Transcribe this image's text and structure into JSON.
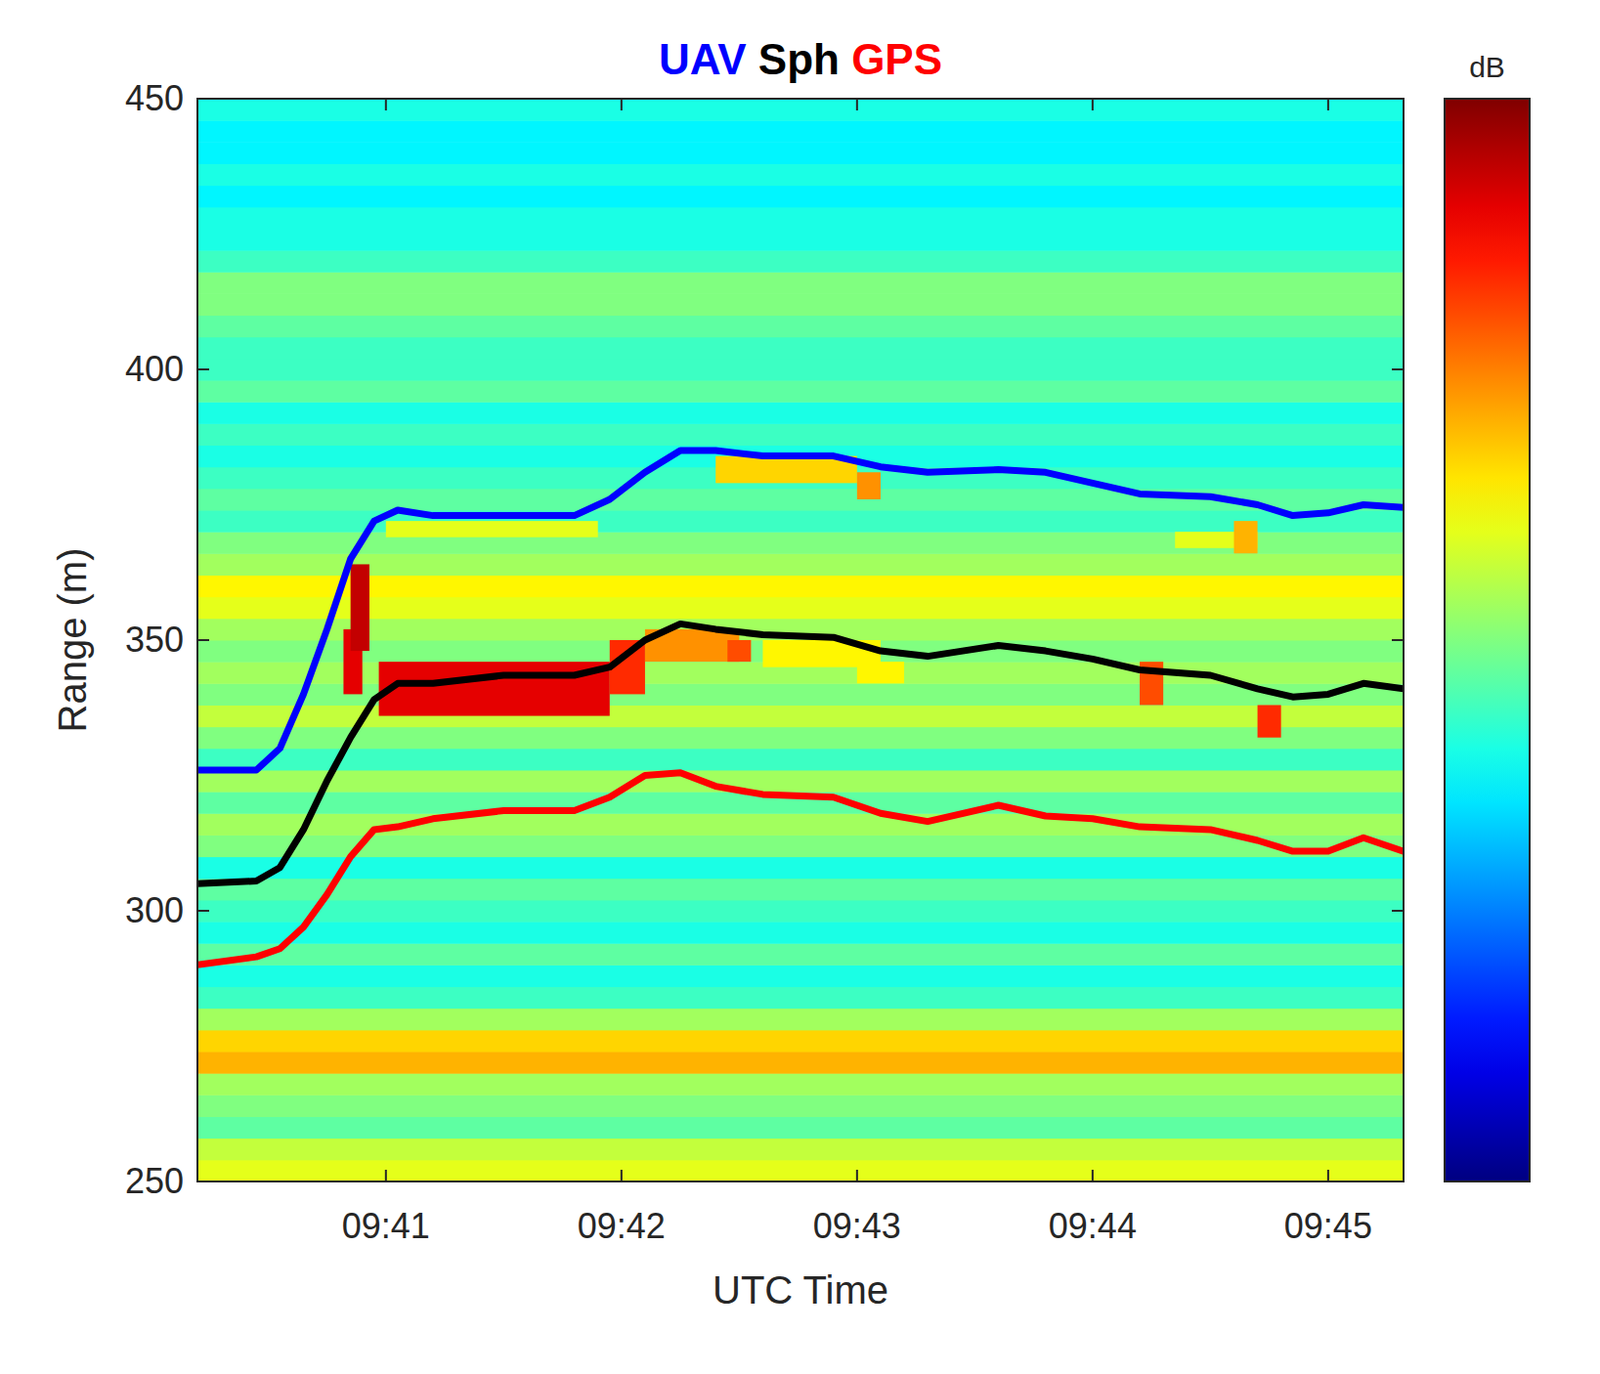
{
  "chart_data": {
    "type": "heatmap_line",
    "xlabel": "UTC Time",
    "ylabel": "Range (m)",
    "legend": "top",
    "grid": false,
    "xlim": [
      40.2,
      45.32
    ],
    "xticks": [
      {
        "value": 41,
        "label": "09:41"
      },
      {
        "value": 42,
        "label": "09:42"
      },
      {
        "value": 43,
        "label": "09:43"
      },
      {
        "value": 44,
        "label": "09:44"
      },
      {
        "value": 45,
        "label": "09:45"
      }
    ],
    "ylim": [
      250,
      450
    ],
    "yticks": [
      250,
      300,
      350,
      400,
      450
    ],
    "x": [
      40.2,
      40.45,
      40.55,
      40.65,
      40.75,
      40.85,
      40.95,
      41.05,
      41.2,
      41.5,
      41.8,
      41.95,
      42.1,
      42.25,
      42.4,
      42.6,
      42.9,
      43.1,
      43.3,
      43.6,
      43.8,
      44.0,
      44.2,
      44.5,
      44.7,
      44.85,
      45.0,
      45.15,
      45.32
    ],
    "series": [
      {
        "name": "UAV",
        "color": "#0000ff",
        "values": [
          326,
          326,
          330,
          340,
          352,
          365,
          372,
          374,
          373,
          373,
          373,
          376,
          381,
          385,
          385,
          384,
          384,
          382,
          381,
          381.5,
          381,
          379,
          377,
          376.5,
          375,
          373,
          373.5,
          375,
          374.5
        ]
      },
      {
        "name": "Sph",
        "color": "#000000",
        "values": [
          305,
          305.5,
          308,
          315,
          324,
          332,
          339,
          342,
          342,
          343.5,
          343.5,
          345,
          350,
          353,
          352,
          351,
          350.5,
          348,
          347,
          349,
          348,
          346.5,
          344.5,
          343.5,
          341,
          339.5,
          340,
          342,
          341
        ]
      },
      {
        "name": "GPS",
        "color": "#ff0000",
        "values": [
          290,
          291.5,
          293,
          297,
          303,
          310,
          315,
          315.5,
          317,
          318.5,
          318.5,
          321,
          325,
          325.5,
          323,
          321.5,
          321,
          318,
          316.5,
          319.5,
          317.5,
          317,
          315.5,
          315,
          313,
          311,
          311,
          313.5,
          311
        ]
      }
    ],
    "heatmap": {
      "range_bins": [
        250,
        254,
        258,
        262,
        266,
        270,
        274,
        278,
        282,
        286,
        290,
        294,
        298,
        302,
        306,
        310,
        314,
        318,
        322,
        326,
        330,
        334,
        338,
        342,
        346,
        350,
        354,
        358,
        362,
        366,
        370,
        374,
        378,
        382,
        386,
        390,
        394,
        398,
        402,
        406,
        410,
        414,
        418,
        422,
        426,
        430,
        434,
        438,
        442,
        446,
        450
      ],
      "row_levels": [
        18,
        17,
        14,
        15,
        16,
        21,
        20,
        16,
        13,
        12,
        14,
        12,
        13,
        14,
        12,
        15,
        16,
        14,
        16,
        13,
        15,
        17,
        15,
        16,
        15,
        16,
        18,
        19,
        16,
        15,
        13,
        14,
        13,
        12,
        13,
        12,
        14,
        13,
        13,
        14,
        15,
        15,
        13,
        12,
        12,
        11,
        12,
        11,
        11,
        12
      ],
      "patches": [
        {
          "t0": 40.82,
          "t1": 40.9,
          "r0": 340,
          "r1": 352,
          "v": 27
        },
        {
          "t0": 40.85,
          "t1": 40.93,
          "r0": 348,
          "r1": 364,
          "v": 28
        },
        {
          "t0": 40.97,
          "t1": 41.95,
          "r0": 336,
          "r1": 346,
          "v": 27
        },
        {
          "t0": 41.95,
          "t1": 42.1,
          "r0": 340,
          "r1": 350,
          "v": 25
        },
        {
          "t0": 42.1,
          "t1": 42.5,
          "r0": 346,
          "r1": 352,
          "v": 22
        },
        {
          "t0": 42.45,
          "t1": 42.55,
          "r0": 346,
          "r1": 350,
          "v": 24
        },
        {
          "t0": 42.6,
          "t1": 43.1,
          "r0": 345,
          "r1": 350,
          "v": 19
        },
        {
          "t0": 43.0,
          "t1": 43.2,
          "r0": 342,
          "r1": 346,
          "v": 19
        },
        {
          "t0": 42.4,
          "t1": 43.0,
          "r0": 379,
          "r1": 384,
          "v": 20
        },
        {
          "t0": 43.0,
          "t1": 43.1,
          "r0": 376,
          "r1": 381,
          "v": 22
        },
        {
          "t0": 41.0,
          "t1": 41.9,
          "r0": 369,
          "r1": 372,
          "v": 18
        },
        {
          "t0": 44.2,
          "t1": 44.3,
          "r0": 338,
          "r1": 346,
          "v": 24
        },
        {
          "t0": 44.7,
          "t1": 44.8,
          "r0": 332,
          "r1": 338,
          "v": 25
        },
        {
          "t0": 44.35,
          "t1": 44.7,
          "r0": 367,
          "r1": 370,
          "v": 18
        },
        {
          "t0": 44.6,
          "t1": 44.7,
          "r0": 366,
          "r1": 372,
          "v": 21
        }
      ]
    },
    "colorbar": {
      "label": "dB",
      "clim": [
        0,
        30
      ]
    }
  }
}
